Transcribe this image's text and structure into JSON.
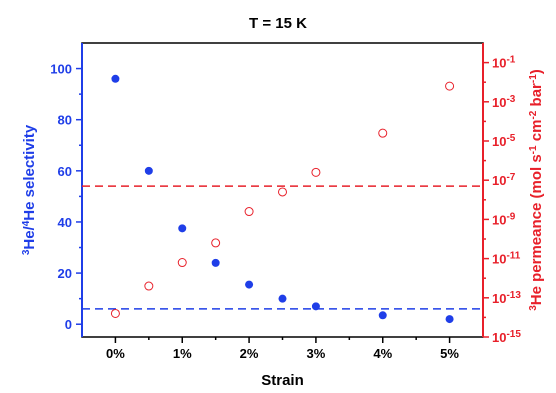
{
  "chart_data": {
    "type": "scatter",
    "title": "T = 15 K",
    "xlabel": "Strain",
    "categories": [
      "0%",
      "1%",
      "2%",
      "3%",
      "4%",
      "5%"
    ],
    "x": [
      0,
      0.5,
      1,
      1.5,
      2,
      2.5,
      3,
      4,
      5
    ],
    "xlim": [
      -0.5,
      5.5
    ],
    "left_axis": {
      "label_parts": [
        "3",
        "He/",
        "4",
        "He selectivity"
      ],
      "ylim": [
        -5,
        110
      ],
      "ticks": [
        "0",
        "20",
        "40",
        "60",
        "80",
        "100"
      ],
      "tick_values": [
        0,
        20,
        40,
        60,
        80,
        100
      ],
      "color": "#1f3ee8"
    },
    "right_axis": {
      "label_parts": [
        "3",
        "He permeance (mol s",
        "-1",
        " cm",
        "-2",
        " bar",
        "-1",
        ")"
      ],
      "scale": "log",
      "ylim_exp": [
        -15,
        0
      ],
      "ticks": [
        {
          "base": "10",
          "exp": "-1"
        },
        {
          "base": "10",
          "exp": "-3"
        },
        {
          "base": "10",
          "exp": "-5"
        },
        {
          "base": "10",
          "exp": "-7"
        },
        {
          "base": "10",
          "exp": "-9"
        },
        {
          "base": "10",
          "exp": "-11"
        },
        {
          "base": "10",
          "exp": "-13"
        },
        {
          "base": "10",
          "exp": "-15"
        }
      ],
      "tick_exps": [
        -1,
        -3,
        -5,
        -7,
        -9,
        -11,
        -13,
        -15
      ],
      "color": "#e8202a"
    },
    "series": [
      {
        "axis": "left",
        "marker": "filled-circle",
        "color": "#1f3ee8",
        "values": [
          96,
          60,
          37.5,
          24,
          15.5,
          10,
          7,
          3.5,
          2
        ]
      },
      {
        "axis": "right",
        "marker": "open-circle",
        "color": "#e8202a",
        "values_exp": [
          -13.8,
          -12.4,
          -11.2,
          -10.2,
          -8.6,
          -7.6,
          -6.6,
          -4.6,
          -2.2
        ]
      }
    ],
    "reference_lines": [
      {
        "axis": "right",
        "value_exp": -7.3,
        "style": "dashed",
        "color": "#e8202a"
      },
      {
        "axis": "left",
        "value": 6,
        "style": "dashed",
        "color": "#1f3ee8"
      }
    ],
    "grid": false,
    "legend": "none"
  }
}
